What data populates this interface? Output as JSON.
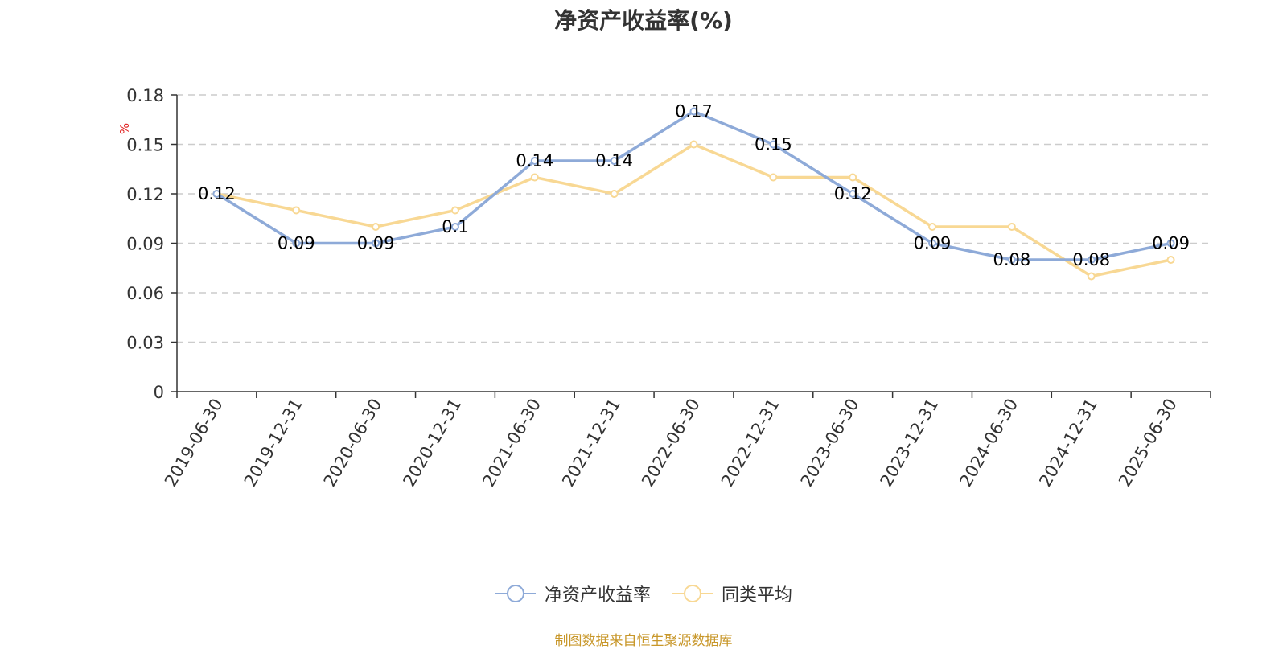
{
  "title": "净资产收益率(%)",
  "source_note": "制图数据来自恒生聚源数据库",
  "colors": {
    "series1": "#8eaad8",
    "series2": "#f8d894",
    "unit_label": "#e02020",
    "axis": "#333333",
    "grid": "#cccccc",
    "source": "#c8972a"
  },
  "chart_data": {
    "type": "line",
    "title": "净资产收益率(%)",
    "ylabel": "%",
    "xlabel": "",
    "categories": [
      "2019-06-30",
      "2019-12-31",
      "2020-06-30",
      "2020-12-31",
      "2021-06-30",
      "2021-12-31",
      "2022-06-30",
      "2022-12-31",
      "2023-06-30",
      "2023-12-31",
      "2024-06-30",
      "2024-12-31",
      "2025-06-30"
    ],
    "yticks": [
      "0",
      "0.03",
      "0.06",
      "0.09",
      "0.12",
      "0.15",
      "0.18"
    ],
    "ylim": [
      0,
      0.18
    ],
    "grid": true,
    "legend_position": "bottom",
    "series": [
      {
        "name": "净资产收益率",
        "values": [
          0.12,
          0.09,
          0.09,
          0.1,
          0.14,
          0.14,
          0.17,
          0.15,
          0.12,
          0.09,
          0.08,
          0.08,
          0.09
        ],
        "labels": [
          "0.12",
          "0.09",
          "0.09",
          "0.1",
          "0.14",
          "0.14",
          "0.17",
          "0.15",
          "0.12",
          "0.09",
          "0.08",
          "0.08",
          "0.09"
        ]
      },
      {
        "name": "同类平均",
        "values": [
          0.12,
          0.11,
          0.1,
          0.11,
          0.13,
          0.12,
          0.15,
          0.13,
          0.13,
          0.1,
          0.1,
          0.07,
          0.08
        ]
      }
    ]
  }
}
